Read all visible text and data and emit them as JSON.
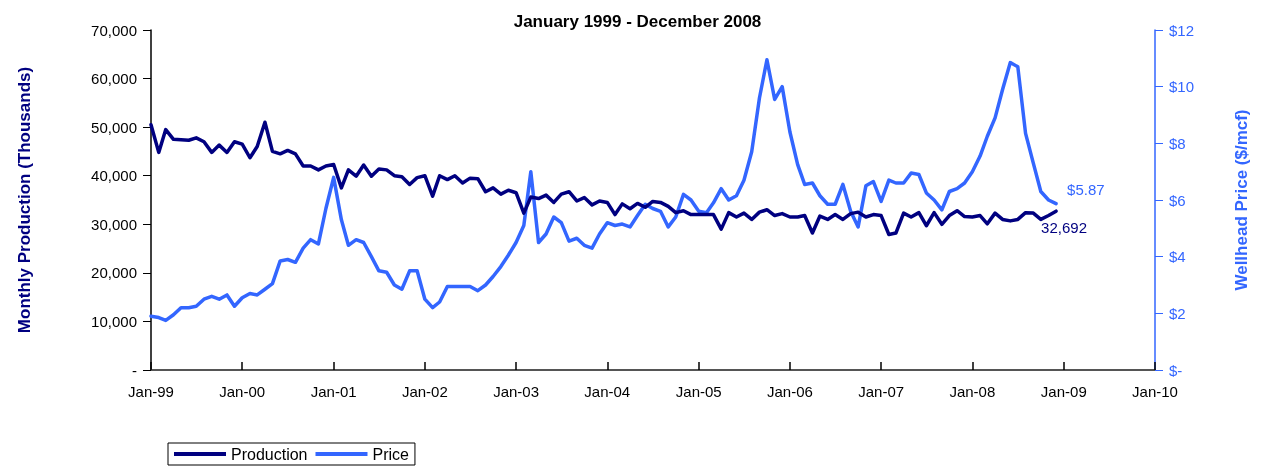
{
  "chart_data": {
    "type": "line",
    "title": "January 1999 - December 2008",
    "ylabel": "Monthly Production (Thousands)",
    "y2label": "Wellhead Price ($/mcf)",
    "x": [
      "1999-01",
      "1999-02",
      "1999-03",
      "1999-04",
      "1999-05",
      "1999-06",
      "1999-07",
      "1999-08",
      "1999-09",
      "1999-10",
      "1999-11",
      "1999-12",
      "2000-01",
      "2000-02",
      "2000-03",
      "2000-04",
      "2000-05",
      "2000-06",
      "2000-07",
      "2000-08",
      "2000-09",
      "2000-10",
      "2000-11",
      "2000-12",
      "2001-01",
      "2001-02",
      "2001-03",
      "2001-04",
      "2001-05",
      "2001-06",
      "2001-07",
      "2001-08",
      "2001-09",
      "2001-10",
      "2001-11",
      "2001-12",
      "2002-01",
      "2002-02",
      "2002-03",
      "2002-04",
      "2002-05",
      "2002-06",
      "2002-07",
      "2002-08",
      "2002-09",
      "2002-10",
      "2002-11",
      "2002-12",
      "2003-01",
      "2003-02",
      "2003-03",
      "2003-04",
      "2003-05",
      "2003-06",
      "2003-07",
      "2003-08",
      "2003-09",
      "2003-10",
      "2003-11",
      "2003-12",
      "2004-01",
      "2004-02",
      "2004-03",
      "2004-04",
      "2004-05",
      "2004-06",
      "2004-07",
      "2004-08",
      "2004-09",
      "2004-10",
      "2004-11",
      "2004-12",
      "2005-01",
      "2005-02",
      "2005-03",
      "2005-04",
      "2005-05",
      "2005-06",
      "2005-07",
      "2005-08",
      "2005-09",
      "2005-10",
      "2005-11",
      "2005-12",
      "2006-01",
      "2006-02",
      "2006-03",
      "2006-04",
      "2006-05",
      "2006-06",
      "2006-07",
      "2006-08",
      "2006-09",
      "2006-10",
      "2006-11",
      "2006-12",
      "2007-01",
      "2007-02",
      "2007-03",
      "2007-04",
      "2007-05",
      "2007-06",
      "2007-07",
      "2007-08",
      "2007-09",
      "2007-10",
      "2007-11",
      "2007-12",
      "2008-01",
      "2008-02",
      "2008-03",
      "2008-04",
      "2008-05",
      "2008-06",
      "2008-07",
      "2008-08",
      "2008-09",
      "2008-10",
      "2008-11",
      "2008-12"
    ],
    "xlim": [
      "1999-01",
      "2010-01"
    ],
    "xticks": [
      {
        "value": "1999-01",
        "label": "Jan-99"
      },
      {
        "value": "2000-01",
        "label": "Jan-00"
      },
      {
        "value": "2001-01",
        "label": "Jan-01"
      },
      {
        "value": "2002-01",
        "label": "Jan-02"
      },
      {
        "value": "2003-01",
        "label": "Jan-03"
      },
      {
        "value": "2004-01",
        "label": "Jan-04"
      },
      {
        "value": "2005-01",
        "label": "Jan-05"
      },
      {
        "value": "2006-01",
        "label": "Jan-06"
      },
      {
        "value": "2007-01",
        "label": "Jan-07"
      },
      {
        "value": "2008-01",
        "label": "Jan-08"
      },
      {
        "value": "2009-01",
        "label": "Jan-09"
      },
      {
        "value": "2010-01",
        "label": "Jan-10"
      }
    ],
    "ylim": [
      0,
      70000
    ],
    "yticks": [
      {
        "value": 0,
        "label": "-"
      },
      {
        "value": 10000,
        "label": "10,000"
      },
      {
        "value": 20000,
        "label": "20,000"
      },
      {
        "value": 30000,
        "label": "30,000"
      },
      {
        "value": 40000,
        "label": "40,000"
      },
      {
        "value": 50000,
        "label": "50,000"
      },
      {
        "value": 60000,
        "label": "60,000"
      },
      {
        "value": 70000,
        "label": "70,000"
      }
    ],
    "y2lim": [
      0,
      12
    ],
    "y2ticks": [
      {
        "value": 0,
        "label": "$-"
      },
      {
        "value": 2,
        "label": "$2"
      },
      {
        "value": 4,
        "label": "$4"
      },
      {
        "value": 6,
        "label": "$6"
      },
      {
        "value": 8,
        "label": "$8"
      },
      {
        "value": 10,
        "label": "$10"
      },
      {
        "value": 12,
        "label": "$12"
      }
    ],
    "grid": false,
    "legend": "bottom",
    "marker": "none",
    "line_style": "solid",
    "series": [
      {
        "name": "Production",
        "color": "#000080",
        "values": [
          50500,
          44800,
          49500,
          47500,
          47400,
          47300,
          47800,
          47000,
          44800,
          46300,
          44800,
          47000,
          46500,
          43700,
          46000,
          51000,
          45000,
          44500,
          45200,
          44500,
          42000,
          42000,
          41200,
          42000,
          42300,
          37500,
          41200,
          39900,
          42200,
          39900,
          41400,
          41200,
          40000,
          39800,
          38200,
          39600,
          40000,
          35800,
          40000,
          39200,
          40000,
          38500,
          39500,
          39400,
          36700,
          37500,
          36200,
          37000,
          36500,
          32300,
          35600,
          35300,
          36000,
          34500,
          36200,
          36700,
          34800,
          35500,
          34000,
          34800,
          34500,
          32000,
          34200,
          33200,
          34300,
          33500,
          34700,
          34500,
          33700,
          32400,
          32800,
          32000,
          32000,
          32000,
          32000,
          29000,
          32400,
          31500,
          32300,
          31000,
          32500,
          33000,
          31800,
          32200,
          31500,
          31500,
          31800,
          28200,
          31700,
          31000,
          32000,
          31000,
          32200,
          32500,
          31500,
          32000,
          31800,
          27900,
          28200,
          32300,
          31500,
          32400,
          29700,
          32400,
          30000,
          31800,
          32800,
          31600,
          31500,
          31800,
          30100,
          32300,
          31000,
          30700,
          31000,
          32400,
          32300,
          31000,
          31800,
          32692
        ],
        "value_labels": [
          null,
          null,
          null,
          null,
          null,
          null,
          null,
          null,
          null,
          null,
          null,
          null,
          null,
          null,
          null,
          null,
          null,
          null,
          null,
          null,
          null,
          null,
          null,
          null,
          null,
          null,
          null,
          null,
          null,
          null,
          null,
          null,
          null,
          null,
          null,
          null,
          null,
          null,
          null,
          null,
          null,
          null,
          null,
          null,
          null,
          null,
          null,
          null,
          null,
          null,
          null,
          null,
          null,
          null,
          null,
          null,
          null,
          null,
          null,
          null,
          null,
          null,
          null,
          null,
          null,
          null,
          null,
          null,
          null,
          null,
          null,
          null,
          null,
          null,
          null,
          null,
          null,
          null,
          null,
          null,
          null,
          null,
          null,
          null,
          null,
          null,
          null,
          null,
          null,
          null,
          null,
          null,
          null,
          null,
          null,
          null,
          null,
          null,
          null,
          null,
          null,
          null,
          null,
          null,
          null,
          null,
          null,
          null,
          null,
          null,
          null,
          null,
          null,
          null,
          null,
          null,
          null,
          null,
          null,
          "32,692"
        ]
      },
      {
        "name": "Price",
        "color": "#3366ff",
        "axis": "y2",
        "values": [
          1.9,
          1.85,
          1.75,
          1.95,
          2.2,
          2.2,
          2.25,
          2.5,
          2.6,
          2.5,
          2.65,
          2.25,
          2.55,
          2.7,
          2.65,
          2.85,
          3.05,
          3.85,
          3.9,
          3.8,
          4.3,
          4.6,
          4.45,
          5.7,
          6.8,
          5.3,
          4.4,
          4.6,
          4.5,
          4.0,
          3.5,
          3.45,
          3.0,
          2.85,
          3.5,
          3.5,
          2.5,
          2.2,
          2.4,
          2.95,
          2.95,
          2.95,
          2.95,
          2.8,
          3.0,
          3.3,
          3.65,
          4.05,
          4.5,
          5.1,
          7.0,
          4.5,
          4.8,
          5.4,
          5.2,
          4.55,
          4.65,
          4.4,
          4.3,
          4.8,
          5.2,
          5.1,
          5.15,
          5.05,
          5.45,
          5.85,
          5.7,
          5.6,
          5.05,
          5.4,
          6.2,
          6.0,
          5.6,
          5.55,
          5.9,
          6.4,
          6.0,
          6.15,
          6.7,
          7.7,
          9.6,
          10.95,
          9.55,
          10.0,
          8.4,
          7.25,
          6.55,
          6.6,
          6.15,
          5.85,
          5.85,
          6.55,
          5.6,
          5.05,
          6.5,
          6.65,
          5.95,
          6.7,
          6.6,
          6.6,
          6.95,
          6.9,
          6.25,
          6.0,
          5.65,
          6.3,
          6.4,
          6.6,
          7.0,
          7.55,
          8.25,
          8.9,
          9.9,
          10.85,
          10.7,
          8.35,
          7.3,
          6.3,
          6.0,
          5.87
        ],
        "value_labels": [
          null,
          null,
          null,
          null,
          null,
          null,
          null,
          null,
          null,
          null,
          null,
          null,
          null,
          null,
          null,
          null,
          null,
          null,
          null,
          null,
          null,
          null,
          null,
          null,
          null,
          null,
          null,
          null,
          null,
          null,
          null,
          null,
          null,
          null,
          null,
          null,
          null,
          null,
          null,
          null,
          null,
          null,
          null,
          null,
          null,
          null,
          null,
          null,
          null,
          null,
          null,
          null,
          null,
          null,
          null,
          null,
          null,
          null,
          null,
          null,
          null,
          null,
          null,
          null,
          null,
          null,
          null,
          null,
          null,
          null,
          null,
          null,
          null,
          null,
          null,
          null,
          null,
          null,
          null,
          null,
          null,
          null,
          null,
          null,
          null,
          null,
          null,
          null,
          null,
          null,
          null,
          null,
          null,
          null,
          null,
          null,
          null,
          null,
          null,
          null,
          null,
          null,
          null,
          null,
          null,
          null,
          null,
          null,
          null,
          null,
          null,
          null,
          null,
          null,
          null,
          null,
          null,
          null,
          null,
          "$5.87"
        ]
      }
    ]
  }
}
